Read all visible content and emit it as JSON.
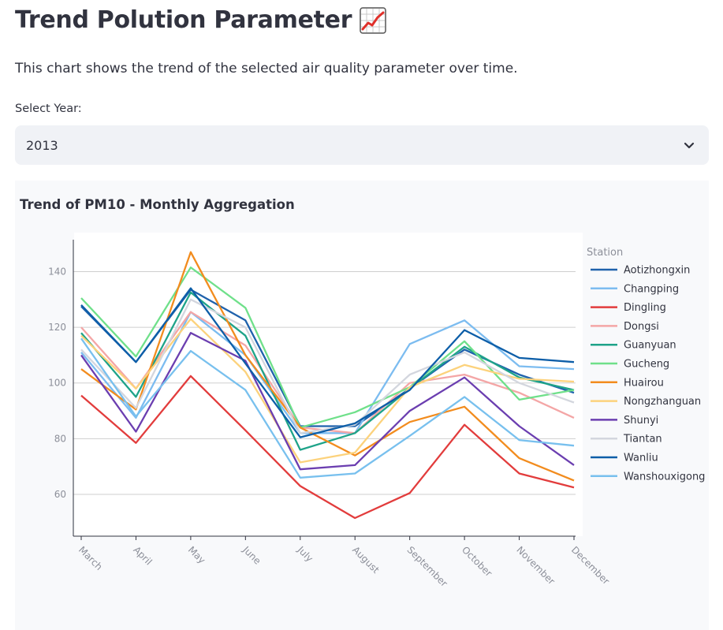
{
  "header": {
    "title": "Trend Polution Parameter",
    "title_icon": "chart-increasing-icon",
    "description": "This chart shows the trend of the selected air quality parameter over time."
  },
  "year_select": {
    "label": "Select Year:",
    "value": "2013",
    "icon": "chevron-down-icon"
  },
  "chart_data": {
    "type": "line",
    "title": "Trend of PM10 - Monthly Aggregation",
    "xlabel": "",
    "ylabel": "",
    "categories": [
      "March",
      "April",
      "May",
      "June",
      "July",
      "August",
      "September",
      "October",
      "November",
      "December"
    ],
    "yticks": [
      60,
      80,
      100,
      120,
      140
    ],
    "ylim": [
      45,
      154
    ],
    "grid": true,
    "legend": {
      "title": "Station",
      "position": "right"
    },
    "series": [
      {
        "name": "Aotizhongxin",
        "color": "#1f62ac",
        "values": [
          127.5,
          107.5,
          133.5,
          122.5,
          84.5,
          84.5,
          98,
          112,
          103,
          96.5
        ]
      },
      {
        "name": "Changping",
        "color": "#7cbcf0",
        "values": [
          111,
          87.5,
          125.5,
          110,
          82,
          82,
          114,
          122.5,
          106,
          105
        ]
      },
      {
        "name": "Dingling",
        "color": "#e23c3c",
        "values": [
          95.5,
          78.5,
          102.5,
          83,
          63,
          51.5,
          60.5,
          85,
          67.5,
          62.5
        ]
      },
      {
        "name": "Dongsi",
        "color": "#f4a6a6",
        "values": [
          120,
          98,
          125.5,
          113.5,
          84,
          82,
          100,
          103,
          96.5,
          87.5
        ]
      },
      {
        "name": "Guanyuan",
        "color": "#1ea389",
        "values": [
          118,
          95,
          132.5,
          117,
          76,
          82,
          98,
          113,
          102,
          97.5
        ]
      },
      {
        "name": "Gucheng",
        "color": "#6fe08a",
        "values": [
          130.5,
          109.5,
          141.5,
          127,
          84,
          89.5,
          98.5,
          115,
          94,
          97.5
        ]
      },
      {
        "name": "Huairou",
        "color": "#f28c1e",
        "values": [
          105,
          90.5,
          147,
          110,
          84,
          74,
          86,
          91.5,
          73,
          65
        ]
      },
      {
        "name": "Nongzhanguan",
        "color": "#fcd27c",
        "values": [
          117,
          98,
          123,
          104,
          71.5,
          75,
          98.5,
          106.5,
          101.5,
          100.5
        ]
      },
      {
        "name": "Shunyi",
        "color": "#6b3eb0",
        "values": [
          110,
          82.5,
          118,
          108,
          69,
          70.5,
          90,
          102,
          84.5,
          70.5
        ]
      },
      {
        "name": "Tiantan",
        "color": "#d3d6de",
        "values": [
          112,
          91,
          130,
          120,
          82,
          85,
          103,
          111,
          100,
          93
        ]
      },
      {
        "name": "Wanliu",
        "color": "#0d5ea8",
        "values": [
          128,
          107.5,
          134,
          107,
          80.5,
          85.5,
          97.5,
          119,
          109,
          107.5
        ]
      },
      {
        "name": "Wanshouxigong",
        "color": "#78c0ee",
        "values": [
          116,
          88,
          111.5,
          97.5,
          66,
          67.5,
          81,
          95,
          79.5,
          77.5
        ]
      }
    ]
  }
}
